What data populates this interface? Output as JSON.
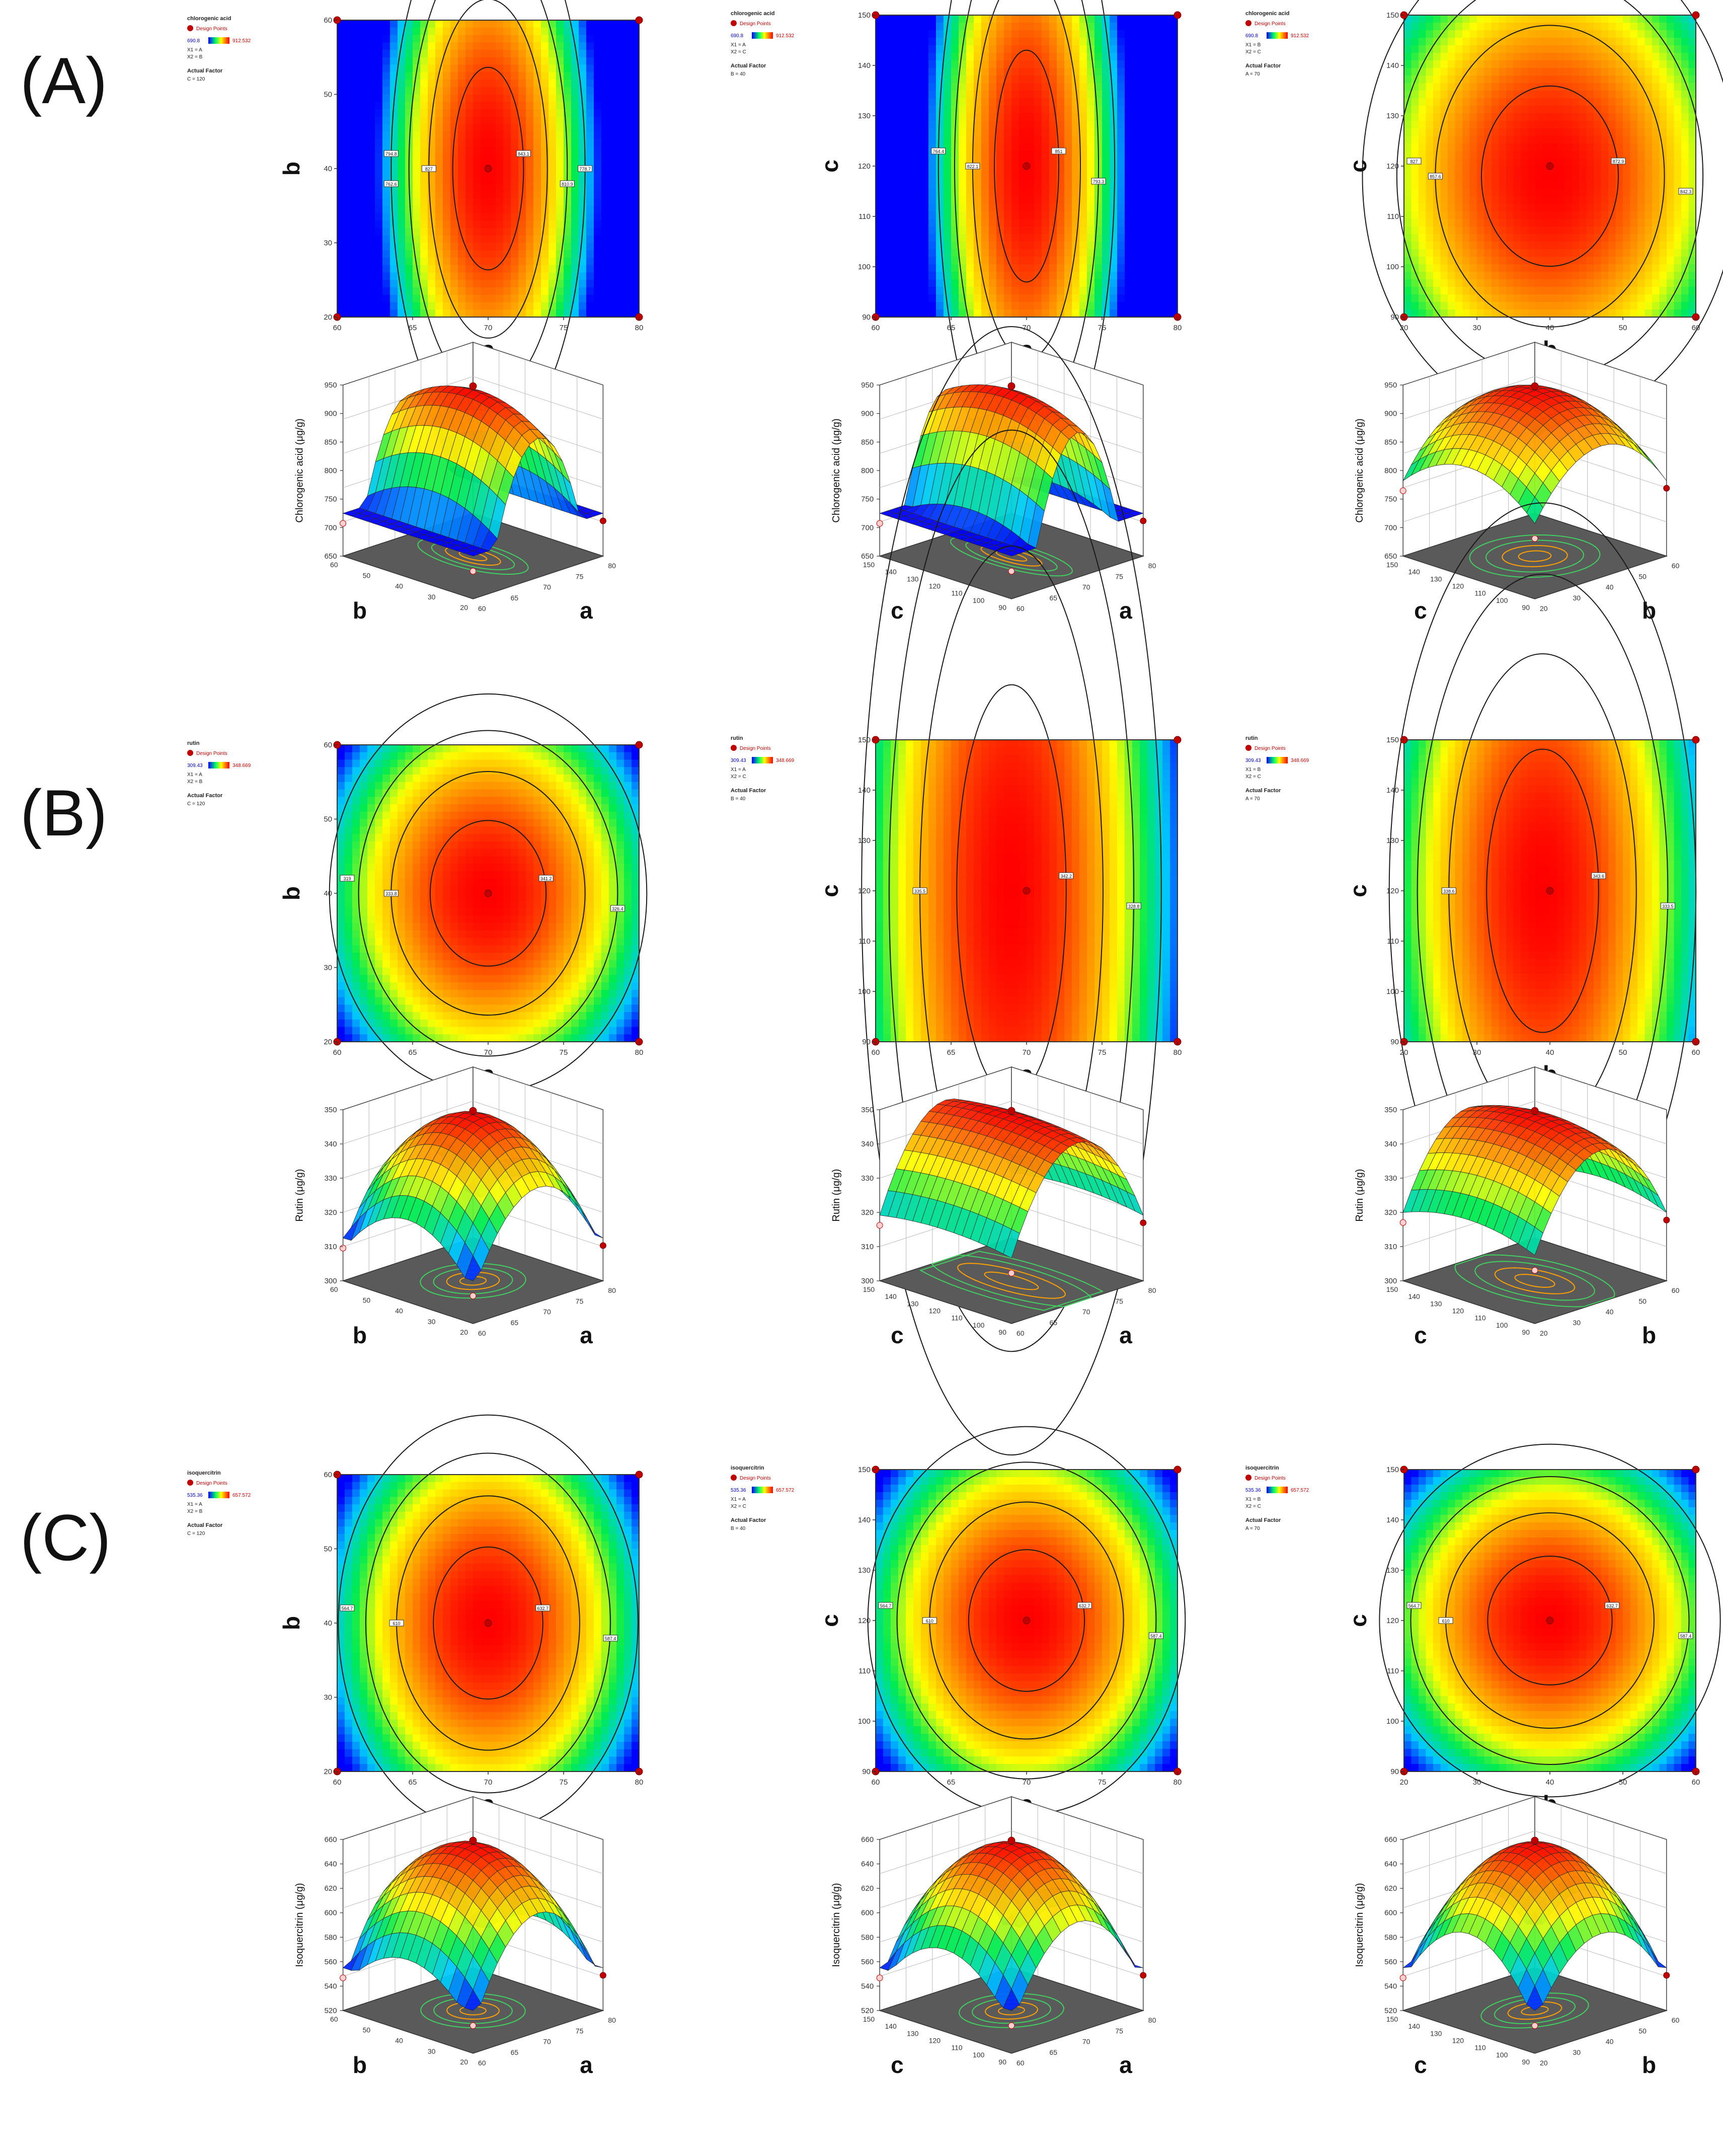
{
  "panels": [
    "(A)",
    "(B)",
    "(C)"
  ],
  "legend": {
    "design_points_label": "Design Points",
    "actual_factor_label": "Actual Factor",
    "color_low": "#0000ff",
    "color_high": "#ff0000"
  },
  "chart_data": [
    {
      "panel": "(A)",
      "response": "chlorogenic acid",
      "ylabel_3d": "Chlorogenic acid (μg/g)",
      "range_low": "690.8",
      "range_high": "912.532",
      "zlim": [
        650,
        950
      ],
      "zticks": [
        "650",
        "700",
        "750",
        "800",
        "850",
        "900",
        "950"
      ],
      "plots": [
        {
          "type": "contour",
          "xlabel": "a",
          "ylabel": "b",
          "xlim": [
            60,
            80
          ],
          "ylim": [
            20,
            60
          ],
          "x_ticks": [
            "60",
            "65",
            "70",
            "75",
            "80"
          ],
          "y_ticks": [
            "20",
            "30",
            "40",
            "50",
            "60"
          ],
          "legend_lines": [
            "X1 = A",
            "X2 = B",
            "C = 120"
          ],
          "optimum": [
            70,
            40
          ],
          "spread": [
            0.55,
            1.6
          ],
          "design_points": [
            [
              60,
              20
            ],
            [
              60,
              60
            ],
            [
              80,
              20
            ],
            [
              80,
              60
            ],
            [
              70,
              40
            ]
          ],
          "contour_labels": [
            "843.1",
            "827",
            "810.9",
            "794.8",
            "778.7",
            "762.6"
          ]
        },
        {
          "type": "contour",
          "xlabel": "a",
          "ylabel": "c",
          "xlim": [
            60,
            80
          ],
          "ylim": [
            90,
            150
          ],
          "x_ticks": [
            "60",
            "65",
            "70",
            "75",
            "80"
          ],
          "y_ticks": [
            "90",
            "100",
            "110",
            "120",
            "130",
            "140",
            "150"
          ],
          "legend_lines": [
            "X1 = A",
            "X2 = C",
            "B = 40"
          ],
          "optimum": [
            70,
            120
          ],
          "spread": [
            0.5,
            1.8
          ],
          "design_points": [
            [
              60,
              90
            ],
            [
              60,
              150
            ],
            [
              80,
              90
            ],
            [
              80,
              150
            ],
            [
              70,
              120
            ]
          ],
          "contour_labels": [
            "851",
            "822.1",
            "793.3",
            "764.4"
          ]
        },
        {
          "type": "contour",
          "xlabel": "b",
          "ylabel": "c",
          "xlim": [
            20,
            60
          ],
          "ylim": [
            90,
            150
          ],
          "x_ticks": [
            "20",
            "30",
            "40",
            "50",
            "60"
          ],
          "y_ticks": [
            "90",
            "100",
            "110",
            "120",
            "130",
            "140",
            "150"
          ],
          "legend_lines": [
            "X1 = B",
            "X2 = C",
            "A = 70"
          ],
          "optimum": [
            40,
            118
          ],
          "spread": [
            1.1,
            1.4
          ],
          "design_points": [
            [
              20,
              90
            ],
            [
              20,
              150
            ],
            [
              60,
              90
            ],
            [
              60,
              150
            ],
            [
              40,
              120
            ]
          ],
          "contour_labels": [
            "872.9",
            "857.6",
            "842.3",
            "827"
          ]
        },
        {
          "type": "surface",
          "xlabel": "a",
          "ylabel": "b",
          "x_ticks": [
            "60",
            "65",
            "70",
            "75",
            "80"
          ],
          "y_ticks": [
            "20",
            "30",
            "40",
            "50",
            "60"
          ],
          "optimum": [
            70,
            40
          ],
          "spread": [
            0.55,
            1.6
          ]
        },
        {
          "type": "surface",
          "xlabel": "a",
          "ylabel": "c",
          "x_ticks": [
            "60",
            "65",
            "70",
            "75",
            "80"
          ],
          "y_ticks": [
            "90",
            "100",
            "110",
            "120",
            "130",
            "140",
            "150"
          ],
          "optimum": [
            70,
            120
          ],
          "spread": [
            0.5,
            1.8
          ]
        },
        {
          "type": "surface",
          "xlabel": "b",
          "ylabel": "c",
          "x_ticks": [
            "20",
            "30",
            "40",
            "50",
            "60"
          ],
          "y_ticks": [
            "90",
            "100",
            "110",
            "120",
            "130",
            "140",
            "150"
          ],
          "optimum": [
            40,
            118
          ],
          "spread": [
            1.1,
            1.4
          ]
        }
      ]
    },
    {
      "panel": "(B)",
      "response": "rutin",
      "ylabel_3d": "Rutin (μg/g)",
      "range_low": "309.43",
      "range_high": "348.669",
      "zlim": [
        300,
        350
      ],
      "zticks": [
        "300",
        "310",
        "320",
        "330",
        "340",
        "350"
      ],
      "plots": [
        {
          "type": "contour",
          "xlabel": "a",
          "ylabel": "b",
          "xlim": [
            60,
            80
          ],
          "ylim": [
            20,
            60
          ],
          "x_ticks": [
            "60",
            "65",
            "70",
            "75",
            "80"
          ],
          "y_ticks": [
            "20",
            "30",
            "40",
            "50",
            "60"
          ],
          "legend_lines": [
            "X1 = A",
            "X2 = B",
            "C = 120"
          ],
          "optimum": [
            70,
            40
          ],
          "spread": [
            0.9,
            1.15
          ],
          "design_points": [
            [
              60,
              20
            ],
            [
              60,
              60
            ],
            [
              80,
              20
            ],
            [
              80,
              60
            ],
            [
              70,
              40
            ]
          ],
          "contour_labels": [
            "341.2",
            "333.8",
            "326.4",
            "319"
          ]
        },
        {
          "type": "contour",
          "xlabel": "a",
          "ylabel": "c",
          "xlim": [
            60,
            80
          ],
          "ylim": [
            90,
            150
          ],
          "x_ticks": [
            "60",
            "65",
            "70",
            "75",
            "80"
          ],
          "y_ticks": [
            "90",
            "100",
            "110",
            "120",
            "130",
            "140",
            "150"
          ],
          "legend_lines": [
            "X1 = A",
            "X2 = C",
            "B = 40"
          ],
          "optimum": [
            69,
            120
          ],
          "spread": [
            0.85,
            3.2
          ],
          "design_points": [
            [
              60,
              90
            ],
            [
              60,
              150
            ],
            [
              80,
              90
            ],
            [
              80,
              150
            ],
            [
              70,
              120
            ]
          ],
          "contour_labels": [
            "342.2",
            "335.5",
            "328.8"
          ]
        },
        {
          "type": "contour",
          "xlabel": "b",
          "ylabel": "c",
          "xlim": [
            20,
            60
          ],
          "ylim": [
            90,
            150
          ],
          "x_ticks": [
            "20",
            "30",
            "40",
            "50",
            "60"
          ],
          "y_ticks": [
            "90",
            "100",
            "110",
            "120",
            "130",
            "140",
            "150"
          ],
          "legend_lines": [
            "X1 = B",
            "X2 = C",
            "A = 70"
          ],
          "optimum": [
            39,
            120
          ],
          "spread": [
            0.9,
            2.2
          ],
          "design_points": [
            [
              20,
              90
            ],
            [
              20,
              150
            ],
            [
              60,
              90
            ],
            [
              60,
              150
            ],
            [
              40,
              120
            ]
          ],
          "contour_labels": [
            "343.6",
            "338.6",
            "333.5"
          ]
        },
        {
          "type": "surface",
          "xlabel": "a",
          "ylabel": "b",
          "x_ticks": [
            "60",
            "65",
            "70",
            "75",
            "80"
          ],
          "y_ticks": [
            "20",
            "30",
            "40",
            "50",
            "60"
          ],
          "optimum": [
            70,
            40
          ],
          "spread": [
            0.9,
            1.15
          ]
        },
        {
          "type": "surface",
          "xlabel": "a",
          "ylabel": "c",
          "x_ticks": [
            "60",
            "65",
            "70",
            "75",
            "80"
          ],
          "y_ticks": [
            "90",
            "100",
            "110",
            "120",
            "130",
            "140",
            "150"
          ],
          "optimum": [
            69,
            120
          ],
          "spread": [
            0.85,
            3.2
          ]
        },
        {
          "type": "surface",
          "xlabel": "b",
          "ylabel": "c",
          "x_ticks": [
            "20",
            "30",
            "40",
            "50",
            "60"
          ],
          "y_ticks": [
            "90",
            "100",
            "110",
            "120",
            "130",
            "140",
            "150"
          ],
          "optimum": [
            39,
            120
          ],
          "spread": [
            0.9,
            2.2
          ]
        }
      ]
    },
    {
      "panel": "(C)",
      "response": "isoquercitrin",
      "ylabel_3d": "Isoquercitrin (μg/g)",
      "range_low": "535.36",
      "range_high": "657.572",
      "zlim": [
        520,
        660
      ],
      "zticks": [
        "520",
        "540",
        "560",
        "580",
        "600",
        "620",
        "640",
        "660"
      ],
      "plots": [
        {
          "type": "contour",
          "xlabel": "a",
          "ylabel": "b",
          "xlim": [
            60,
            80
          ],
          "ylim": [
            20,
            60
          ],
          "x_ticks": [
            "60",
            "65",
            "70",
            "75",
            "80"
          ],
          "y_ticks": [
            "20",
            "30",
            "40",
            "50",
            "60"
          ],
          "legend_lines": [
            "X1 = A",
            "X2 = B",
            "C = 120"
          ],
          "optimum": [
            70,
            40
          ],
          "spread": [
            0.85,
            1.2
          ],
          "design_points": [
            [
              60,
              20
            ],
            [
              60,
              60
            ],
            [
              80,
              20
            ],
            [
              80,
              60
            ],
            [
              70,
              40
            ]
          ],
          "contour_labels": [
            "632.7",
            "610",
            "587.4",
            "564.7"
          ]
        },
        {
          "type": "contour",
          "xlabel": "a",
          "ylabel": "c",
          "xlim": [
            60,
            80
          ],
          "ylim": [
            90,
            150
          ],
          "x_ticks": [
            "60",
            "65",
            "70",
            "75",
            "80"
          ],
          "y_ticks": [
            "90",
            "100",
            "110",
            "120",
            "130",
            "140",
            "150"
          ],
          "legend_lines": [
            "X1 = A",
            "X2 = C",
            "B = 40"
          ],
          "optimum": [
            70,
            120
          ],
          "spread": [
            0.9,
            1.1
          ],
          "design_points": [
            [
              60,
              90
            ],
            [
              60,
              150
            ],
            [
              80,
              90
            ],
            [
              80,
              150
            ],
            [
              70,
              120
            ]
          ],
          "contour_labels": [
            "632.7",
            "610",
            "587.4",
            "564.7"
          ]
        },
        {
          "type": "contour",
          "xlabel": "b",
          "ylabel": "c",
          "xlim": [
            20,
            60
          ],
          "ylim": [
            90,
            150
          ],
          "x_ticks": [
            "20",
            "30",
            "40",
            "50",
            "60"
          ],
          "y_ticks": [
            "90",
            "100",
            "110",
            "120",
            "130",
            "140",
            "150"
          ],
          "legend_lines": [
            "X1 = B",
            "X2 = C",
            "A = 70"
          ],
          "optimum": [
            40,
            120
          ],
          "spread": [
            1.0,
            1.0
          ],
          "design_points": [
            [
              20,
              90
            ],
            [
              20,
              150
            ],
            [
              60,
              90
            ],
            [
              60,
              150
            ],
            [
              40,
              120
            ]
          ],
          "contour_labels": [
            "632.7",
            "610",
            "587.4",
            "564.7"
          ]
        },
        {
          "type": "surface",
          "xlabel": "a",
          "ylabel": "b",
          "x_ticks": [
            "60",
            "65",
            "70",
            "75",
            "80"
          ],
          "y_ticks": [
            "20",
            "30",
            "40",
            "50",
            "60"
          ],
          "optimum": [
            70,
            40
          ],
          "spread": [
            0.85,
            1.2
          ]
        },
        {
          "type": "surface",
          "xlabel": "a",
          "ylabel": "c",
          "x_ticks": [
            "60",
            "65",
            "70",
            "75",
            "80"
          ],
          "y_ticks": [
            "90",
            "100",
            "110",
            "120",
            "130",
            "140",
            "150"
          ],
          "optimum": [
            70,
            120
          ],
          "spread": [
            0.9,
            1.1
          ]
        },
        {
          "type": "surface",
          "xlabel": "b",
          "ylabel": "c",
          "x_ticks": [
            "20",
            "30",
            "40",
            "50",
            "60"
          ],
          "y_ticks": [
            "90",
            "100",
            "110",
            "120",
            "130",
            "140",
            "150"
          ],
          "optimum": [
            40,
            120
          ],
          "spread": [
            1.0,
            1.0
          ]
        }
      ]
    }
  ]
}
